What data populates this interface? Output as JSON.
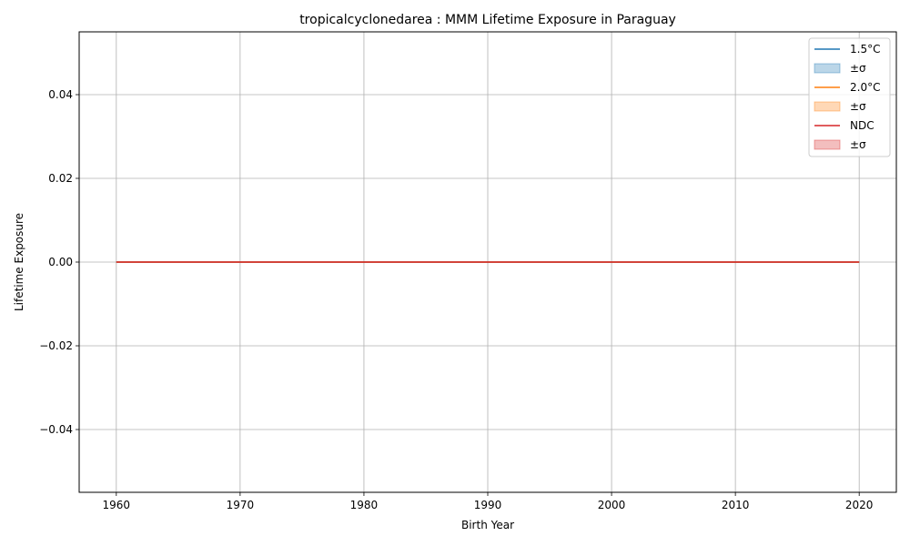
{
  "chart_data": {
    "type": "line",
    "title": "tropicalcyclonedarea : MMM Lifetime Exposure in Paraguay",
    "xlabel": "Birth Year",
    "ylabel": "Lifetime Exposure",
    "xlim": [
      1957,
      2023
    ],
    "ylim": [
      -0.055,
      0.055
    ],
    "xticks": [
      1960,
      1970,
      1980,
      1990,
      2000,
      2010,
      2020
    ],
    "xtick_labels": [
      "1960",
      "1970",
      "1980",
      "1990",
      "2000",
      "2010",
      "2020"
    ],
    "yticks": [
      -0.04,
      -0.02,
      0.0,
      0.02,
      0.04
    ],
    "ytick_labels": [
      "−0.04",
      "−0.02",
      "0.00",
      "0.02",
      "0.04"
    ],
    "grid": true,
    "legend_position": "top-right",
    "x": [
      1960,
      2020
    ],
    "series": [
      {
        "name": "1.5°C",
        "color": "#1f77b4",
        "values": [
          0.0,
          0.0
        ],
        "band": {
          "name": "±σ",
          "lower": [
            0.0,
            0.0
          ],
          "upper": [
            0.0,
            0.0
          ]
        }
      },
      {
        "name": "2.0°C",
        "color": "#ff7f0e",
        "values": [
          0.0,
          0.0
        ],
        "band": {
          "name": "±σ",
          "lower": [
            0.0,
            0.0
          ],
          "upper": [
            0.0,
            0.0
          ]
        }
      },
      {
        "name": "NDC",
        "color": "#d62728",
        "values": [
          0.0,
          0.0
        ],
        "band": {
          "name": "±σ",
          "lower": [
            0.0,
            0.0
          ],
          "upper": [
            0.0,
            0.0
          ]
        }
      }
    ]
  }
}
